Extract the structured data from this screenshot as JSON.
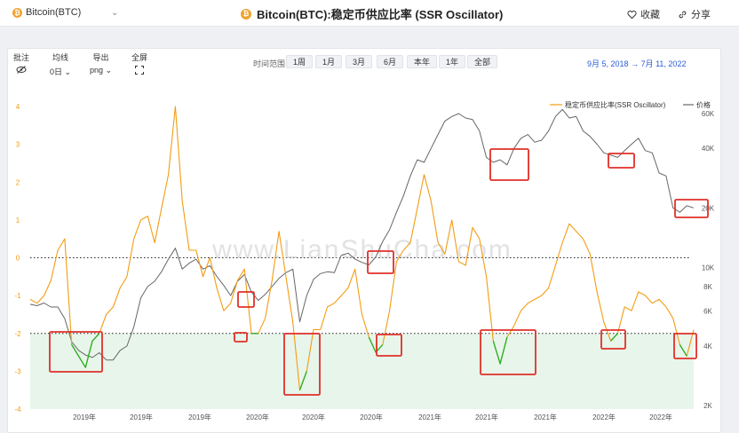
{
  "header": {
    "coin_selector": "Bitcoin(BTC)",
    "coin_icon_letter": "₿",
    "title": "Bitcoin(BTC):稳定币供应比率 (SSR Oscillator)",
    "favorite_label": "收藏",
    "share_label": "分享"
  },
  "toolbar": {
    "annotate_label": "批注",
    "ma_label": "均线",
    "ma_value": "0日",
    "export_label": "导出",
    "export_value": "png",
    "fullscreen_label": "全屏",
    "range_label": "时间范围",
    "ranges": [
      "1周",
      "1月",
      "3月",
      "6月",
      "本年",
      "1年",
      "全部"
    ],
    "date_from": "9月 5, 2018",
    "date_arrow": "→",
    "date_to": "7月 11, 2022"
  },
  "watermark": "www.LianShuCha.com",
  "chart_data": {
    "type": "line",
    "title": "稳定币供应比率 (SSR Oscillator)",
    "legend": [
      "稳定币供应比率(SSR Oscillator)",
      "价格"
    ],
    "legend_position": "top-right",
    "x_ticks": [
      "2019年",
      "2019年",
      "2019年",
      "2020年",
      "2020年",
      "2020年",
      "2021年",
      "2021年",
      "2021年",
      "2022年",
      "2022年"
    ],
    "y_left": {
      "ticks": [
        "4",
        "3",
        "2",
        "1",
        "0",
        "-1",
        "-2",
        "-3",
        "-4"
      ],
      "ylim": [
        -4,
        4.4
      ]
    },
    "y_right": {
      "scale": "log",
      "ticks": [
        "60K",
        "40K",
        "20K",
        "10K",
        "8K",
        "6K",
        "4K",
        "2K"
      ]
    },
    "reference_lines": [
      0,
      -2
    ],
    "shaded_band": [
      -4,
      -2
    ],
    "colors": {
      "ssr": "#f39c12",
      "ssr_low": "#22b022",
      "price": "#666666",
      "box": "#e0302a",
      "band": "#e8f5ea"
    },
    "series": [
      {
        "name": "稳定币供应比率(SSR Oscillator)",
        "values": [
          -1.1,
          -1.2,
          -1.0,
          -0.6,
          0.2,
          0.5,
          -2.3,
          -2.6,
          -2.9,
          -2.2,
          -2.0,
          -1.5,
          -1.3,
          -0.8,
          -0.5,
          0.5,
          1.0,
          1.1,
          0.4,
          1.3,
          2.2,
          4.0,
          1.5,
          0.2,
          0.2,
          -0.5,
          0.0,
          -0.8,
          -1.4,
          -1.2,
          -0.6,
          -0.3,
          -2.0,
          -2.0,
          -1.6,
          -0.6,
          0.7,
          -0.5,
          -1.7,
          -3.5,
          -3.0,
          -1.9,
          -1.9,
          -1.3,
          -1.2,
          -1.0,
          -0.8,
          -0.3,
          -1.5,
          -2.1,
          -2.5,
          -2.3,
          -1.4,
          -0.1,
          0.2,
          0.4,
          1.3,
          2.2,
          1.5,
          0.4,
          0.1,
          1.0,
          -0.1,
          -0.2,
          0.8,
          0.5,
          -0.5,
          -2.2,
          -2.8,
          -2.1,
          -1.8,
          -1.4,
          -1.2,
          -1.1,
          -1.0,
          -0.8,
          -0.2,
          0.4,
          0.9,
          0.7,
          0.5,
          0.1,
          -0.9,
          -1.7,
          -2.2,
          -2.0,
          -1.3,
          -1.4,
          -0.9,
          -1.0,
          -1.2,
          -1.1,
          -1.3,
          -1.6,
          -2.3,
          -2.6,
          -1.9
        ]
      },
      {
        "name": "价格",
        "values": [
          6500,
          6400,
          6600,
          6300,
          6300,
          5500,
          4200,
          3800,
          3600,
          3500,
          3700,
          3400,
          3400,
          3800,
          4000,
          5000,
          7000,
          8000,
          8500,
          9500,
          11000,
          12500,
          9800,
          10500,
          11000,
          9800,
          10200,
          9000,
          8100,
          7200,
          8500,
          9200,
          7500,
          6800,
          7300,
          8000,
          8800,
          9400,
          9800,
          5300,
          7200,
          8700,
          9300,
          9500,
          9400,
          11500,
          11800,
          11000,
          10600,
          10300,
          11300,
          13500,
          15500,
          19000,
          23000,
          29000,
          35000,
          34000,
          40000,
          47000,
          55000,
          58000,
          60000,
          57000,
          56000,
          49000,
          36000,
          34000,
          35000,
          33000,
          40000,
          45000,
          47000,
          43000,
          44000,
          49000,
          58000,
          63000,
          57000,
          58000,
          49000,
          46000,
          42000,
          38000,
          37000,
          36000,
          39000,
          42000,
          45000,
          39000,
          38000,
          30000,
          29000,
          20000,
          19000,
          20500,
          20000
        ]
      }
    ]
  }
}
